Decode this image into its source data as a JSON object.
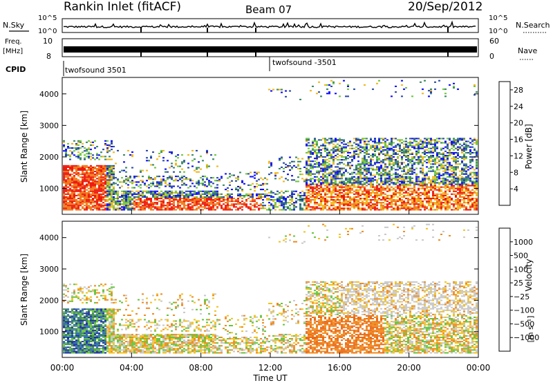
{
  "header": {
    "title": "Rankin Inlet (fitACF)",
    "beam": "Beam 07",
    "date": "20/Sep/2012"
  },
  "strips": {
    "nsky_label": "N.Sky",
    "nsky_ticks": [
      "10^5",
      "10^0"
    ],
    "nsearch_label": "N.Search",
    "freq_label": "Freq.",
    "freq_unit": "[MHz]",
    "freq_ticks": [
      "10",
      "8"
    ],
    "nave_label": "Nave",
    "nave_ticks": [
      "60",
      "0"
    ],
    "cpid_label": "CPID",
    "cpid_left": "twofsound 3501",
    "cpid_right": "twofsound -3501"
  },
  "chart_data": [
    {
      "type": "heatmap",
      "panel": "power",
      "ylabel": "Slant Range [km]",
      "ylim": [
        200,
        4500
      ],
      "yticks": [
        1000,
        2000,
        3000,
        4000
      ],
      "xlim": [
        0,
        24
      ],
      "colorbar": {
        "label": "Power [dB]",
        "ticks": [
          "4",
          "8",
          "12",
          "16",
          "20",
          "24",
          "28"
        ],
        "colors": [
          "#1010ff",
          "#2e4ea8",
          "#3a8a64",
          "#6fc83c",
          "#f2b81c",
          "#f07a1c",
          "#ee1a10"
        ]
      }
    },
    {
      "type": "heatmap",
      "panel": "velocity",
      "ylabel": "Slant Range [km]",
      "ylim": [
        200,
        4500
      ],
      "yticks": [
        1000,
        2000,
        3000,
        4000
      ],
      "xlim": [
        0,
        24
      ],
      "xlabel": "Time UT",
      "xticks": [
        "00:00",
        "04:00",
        "08:00",
        "12:00",
        "16:00",
        "20:00",
        "00:00"
      ],
      "colorbar": {
        "label": "Velocity",
        "unit": "[m s⁻¹]",
        "ticks": [
          "1000",
          "500",
          "100",
          "25",
          "−25",
          "−100",
          "−500",
          "−1000"
        ],
        "colors": [
          "#1e2fa0",
          "#2c6cae",
          "#3e8a58",
          "#66c43a",
          "#c8c8c8",
          "#f2c21e",
          "#f08a1c",
          "#ea6a18",
          "#e21a10"
        ]
      }
    }
  ]
}
